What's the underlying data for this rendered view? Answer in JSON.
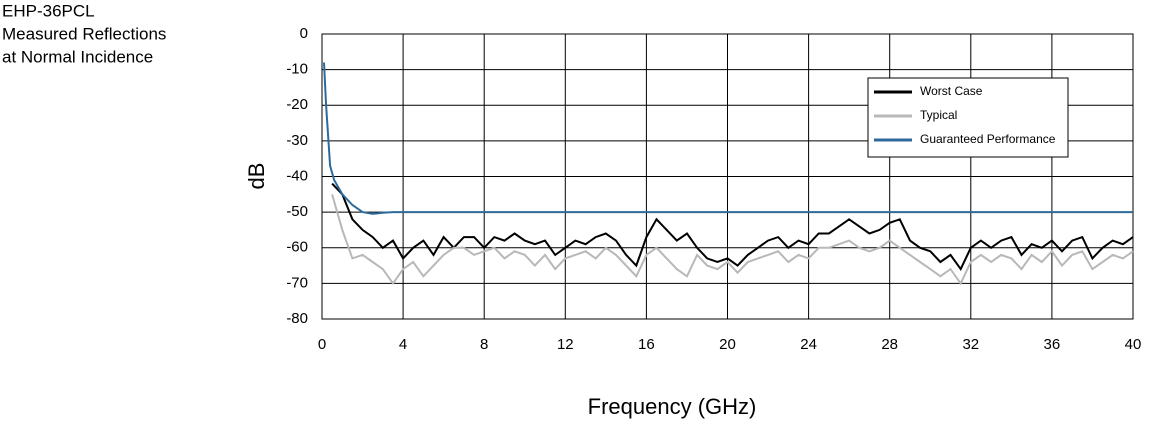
{
  "chart_data": {
    "type": "line",
    "title_lines": [
      "EHP-36PCL",
      "Measured Reflections",
      "at Normal Incidence"
    ],
    "x_label": "Frequency (GHz)",
    "y_label": "dB",
    "xlim": [
      0,
      40
    ],
    "xticks": [
      0,
      4,
      8,
      12,
      16,
      20,
      24,
      28,
      32,
      36,
      40
    ],
    "ylim": [
      -80,
      0
    ],
    "yticks": [
      0,
      -10,
      -20,
      -30,
      -40,
      -50,
      -60,
      -70,
      -80
    ],
    "grid": true,
    "legend": "upper right",
    "series": [
      {
        "name": "Worst Case",
        "color": "#000000",
        "x": [
          0.5,
          1,
          1.5,
          2,
          2.5,
          3,
          3.5,
          4,
          4.5,
          5,
          5.5,
          6,
          6.5,
          7,
          7.5,
          8,
          8.5,
          9,
          9.5,
          10,
          10.5,
          11,
          11.5,
          12,
          12.5,
          13,
          13.5,
          14,
          14.5,
          15,
          15.5,
          16,
          16.5,
          17,
          17.5,
          18,
          18.5,
          19,
          19.5,
          20,
          20.5,
          21,
          21.5,
          22,
          22.5,
          23,
          23.5,
          24,
          24.5,
          25,
          25.5,
          26,
          26.5,
          27,
          27.5,
          28,
          28.5,
          29,
          29.5,
          30,
          30.5,
          31,
          31.5,
          32,
          32.5,
          33,
          33.5,
          34,
          34.5,
          35,
          35.5,
          36,
          36.5,
          37,
          37.5,
          38,
          38.5,
          39,
          39.5,
          40
        ],
        "values": [
          -42,
          -45,
          -52,
          -55,
          -57,
          -60,
          -58,
          -63,
          -60,
          -58,
          -62,
          -57,
          -60,
          -57,
          -57,
          -60,
          -57,
          -58,
          -56,
          -58,
          -59,
          -58,
          -62,
          -60,
          -58,
          -59,
          -57,
          -56,
          -58,
          -62,
          -65,
          -57,
          -52,
          -55,
          -58,
          -56,
          -60,
          -63,
          -64,
          -63,
          -65,
          -62,
          -60,
          -58,
          -57,
          -60,
          -58,
          -59,
          -56,
          -56,
          -54,
          -52,
          -54,
          -56,
          -55,
          -53,
          -52,
          -58,
          -60,
          -61,
          -64,
          -62,
          -66,
          -60,
          -58,
          -60,
          -58,
          -57,
          -62,
          -59,
          -60,
          -58,
          -61,
          -58,
          -57,
          -63,
          -60,
          -58,
          -59,
          -57
        ]
      },
      {
        "name": "Typical",
        "color": "#b8b8b8",
        "x": [
          0.5,
          1,
          1.5,
          2,
          2.5,
          3,
          3.5,
          4,
          4.5,
          5,
          5.5,
          6,
          6.5,
          7,
          7.5,
          8,
          8.5,
          9,
          9.5,
          10,
          10.5,
          11,
          11.5,
          12,
          12.5,
          13,
          13.5,
          14,
          14.5,
          15,
          15.5,
          16,
          16.5,
          17,
          17.5,
          18,
          18.5,
          19,
          19.5,
          20,
          20.5,
          21,
          21.5,
          22,
          22.5,
          23,
          23.5,
          24,
          24.5,
          25,
          25.5,
          26,
          26.5,
          27,
          27.5,
          28,
          28.5,
          29,
          29.5,
          30,
          30.5,
          31,
          31.5,
          32,
          32.5,
          33,
          33.5,
          34,
          34.5,
          35,
          35.5,
          36,
          36.5,
          37,
          37.5,
          38,
          38.5,
          39,
          39.5,
          40
        ],
        "values": [
          -45,
          -55,
          -63,
          -62,
          -64,
          -66,
          -70,
          -66,
          -64,
          -68,
          -65,
          -62,
          -60,
          -60,
          -62,
          -61,
          -60,
          -63,
          -61,
          -62,
          -65,
          -62,
          -66,
          -63,
          -62,
          -61,
          -63,
          -60,
          -62,
          -65,
          -68,
          -62,
          -60,
          -63,
          -66,
          -68,
          -62,
          -65,
          -66,
          -64,
          -67,
          -64,
          -63,
          -62,
          -61,
          -64,
          -62,
          -63,
          -60,
          -60,
          -59,
          -58,
          -60,
          -61,
          -60,
          -58,
          -60,
          -62,
          -64,
          -66,
          -68,
          -66,
          -70,
          -64,
          -62,
          -64,
          -62,
          -63,
          -66,
          -62,
          -64,
          -61,
          -65,
          -62,
          -61,
          -66,
          -64,
          -62,
          -63,
          -61
        ]
      },
      {
        "name": "Guaranteed Performance",
        "color": "#2d6a9b",
        "x": [
          0.1,
          0.2,
          0.4,
          0.6,
          1,
          1.5,
          2,
          2.5,
          3,
          3.5,
          4,
          40
        ],
        "values": [
          -8,
          -20,
          -37,
          -41,
          -45,
          -48,
          -50,
          -50.5,
          -50.2,
          -50,
          -50,
          -50
        ]
      }
    ]
  }
}
